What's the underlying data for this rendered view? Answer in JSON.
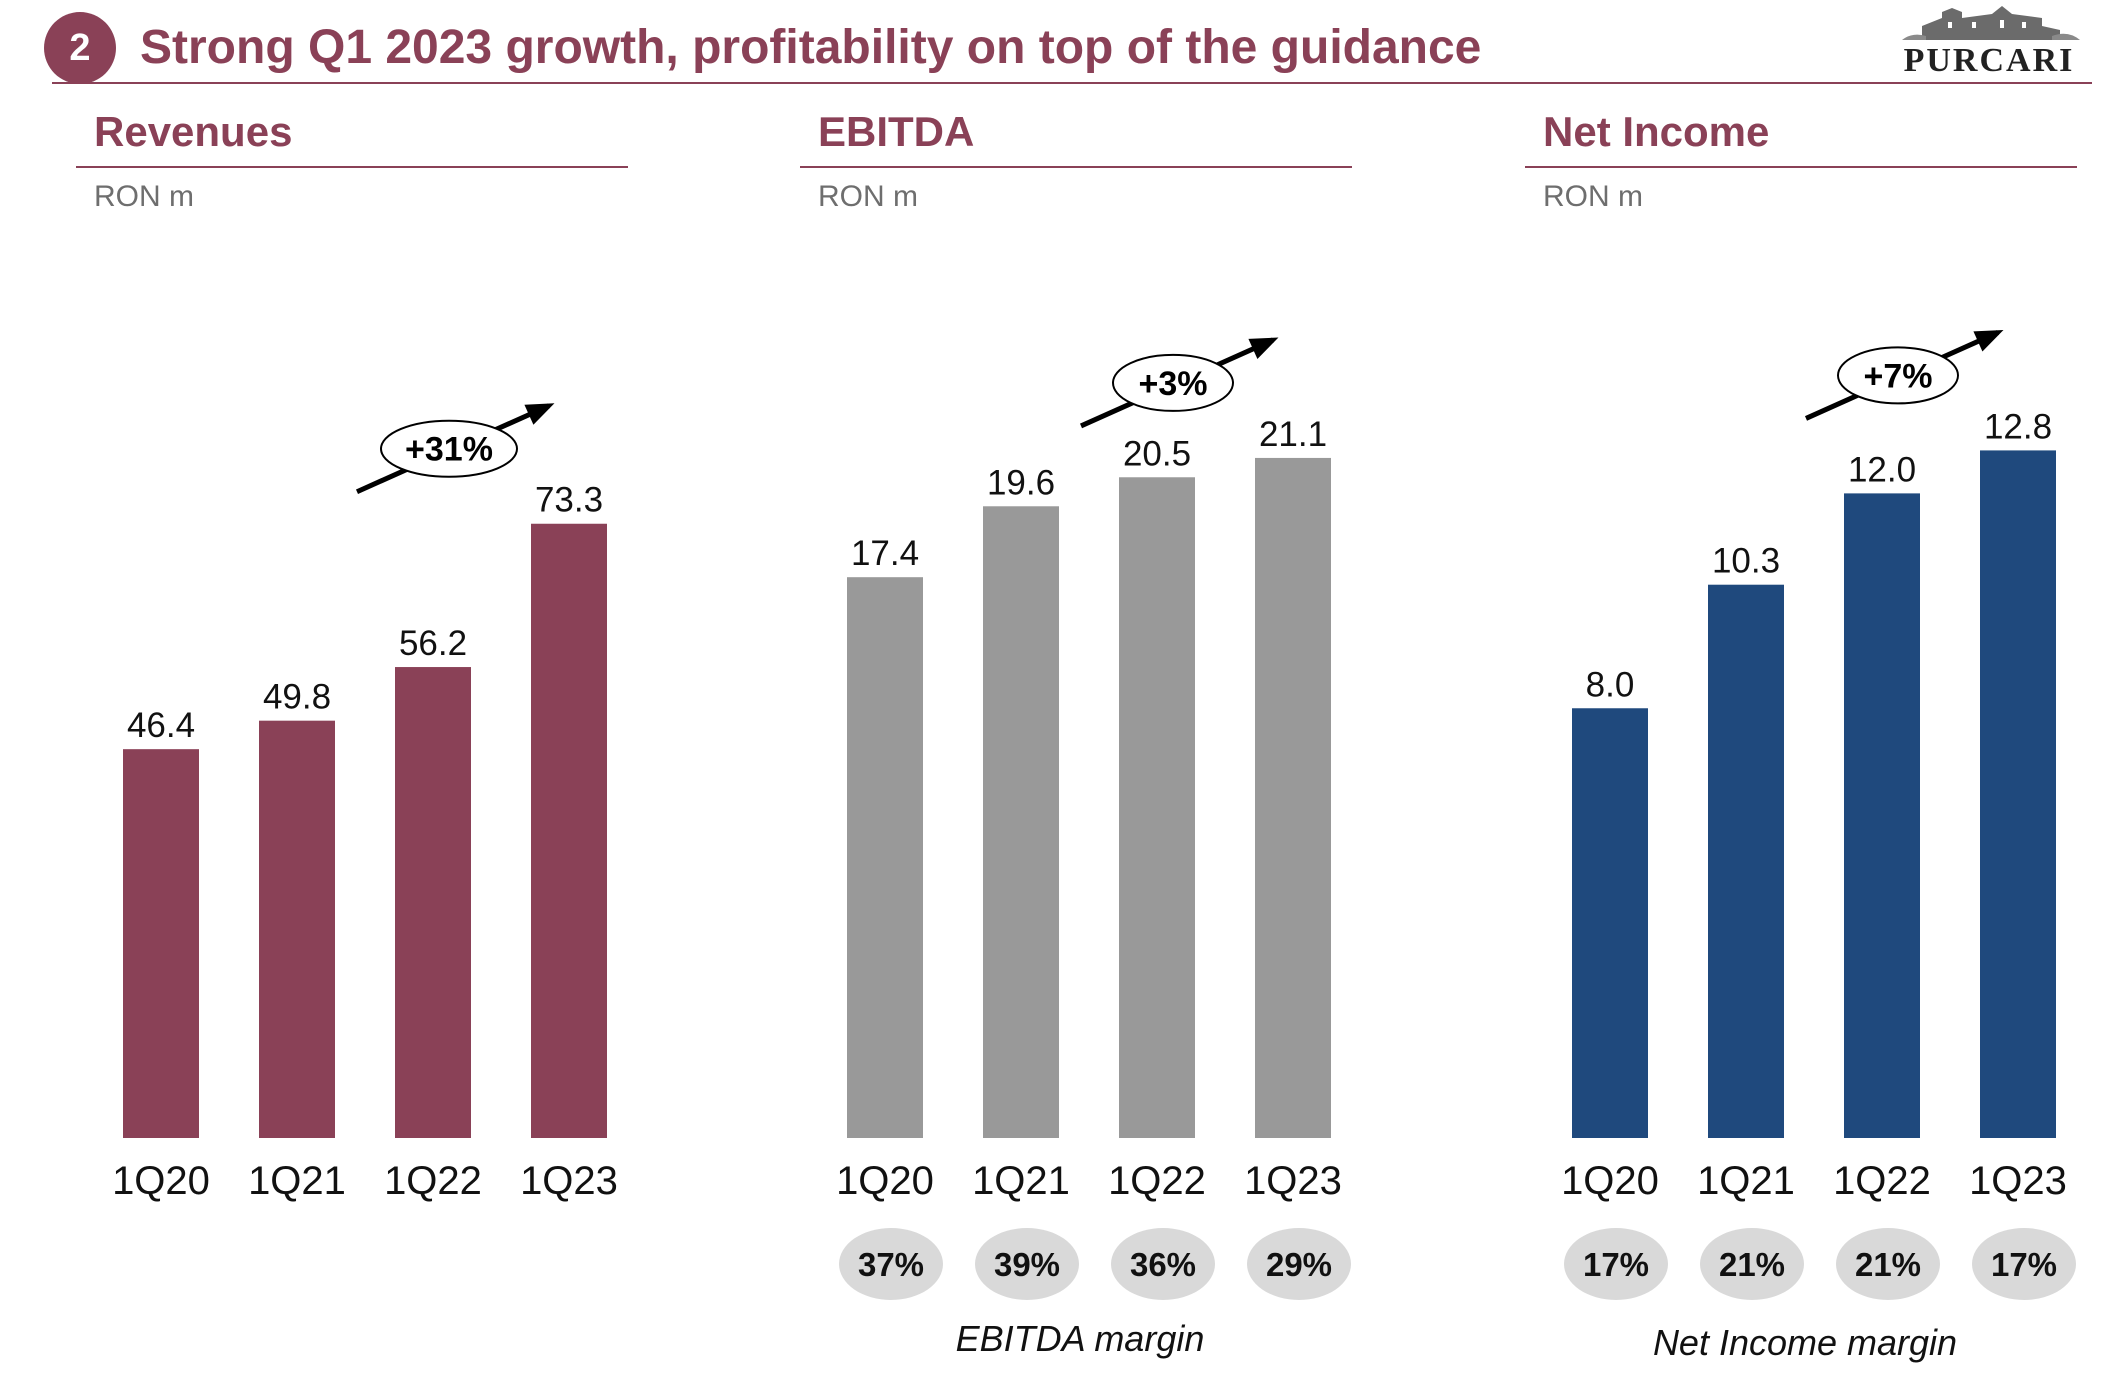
{
  "slide": {
    "number": "2",
    "title": "Strong Q1 2023 growth, profitability on top of the guidance",
    "logo_text": "PURCARI"
  },
  "colors": {
    "brand": "#8a4157",
    "revenue_bar": "#8a4157",
    "ebitda_bar": "#999999",
    "netincome_bar": "#1f497d",
    "margin_pill": "#d9d9d9"
  },
  "panels": [
    {
      "title": "Revenues",
      "unit": "RON m",
      "growth": "+31%",
      "margin_label": "",
      "margins": []
    },
    {
      "title": "EBITDA",
      "unit": "RON m",
      "growth": "+3%",
      "margin_label": "EBITDA margin",
      "margins": [
        "37%",
        "39%",
        "36%",
        "29%"
      ]
    },
    {
      "title": "Net Income",
      "unit": "RON m",
      "growth": "+7%",
      "margin_label": "Net Income margin",
      "margins": [
        "17%",
        "21%",
        "21%",
        "17%"
      ]
    }
  ],
  "chart_data": [
    {
      "type": "bar",
      "title": "Revenues",
      "ylabel": "RON m",
      "categories": [
        "1Q20",
        "1Q21",
        "1Q22",
        "1Q23"
      ],
      "values": [
        46.4,
        49.8,
        56.2,
        73.3
      ],
      "value_labels": [
        "46.4",
        "49.8",
        "56.2",
        "73.3"
      ],
      "growth_annotation": "+31%",
      "ylim": [
        0,
        100
      ],
      "color": "#8a4157"
    },
    {
      "type": "bar",
      "title": "EBITDA",
      "ylabel": "RON m",
      "categories": [
        "1Q20",
        "1Q21",
        "1Q22",
        "1Q23"
      ],
      "values": [
        17.4,
        19.6,
        20.5,
        21.1
      ],
      "value_labels": [
        "17.4",
        "19.6",
        "20.5",
        "21.1"
      ],
      "growth_annotation": "+3%",
      "ylim": [
        0,
        26
      ],
      "color": "#999999",
      "margins": [
        "37%",
        "39%",
        "36%",
        "29%"
      ]
    },
    {
      "type": "bar",
      "title": "Net Income",
      "ylabel": "RON m",
      "categories": [
        "1Q20",
        "1Q21",
        "1Q22",
        "1Q23"
      ],
      "values": [
        8.0,
        10.3,
        12.0,
        12.8
      ],
      "value_labels": [
        "8.0",
        "10.3",
        "12.0",
        "12.8"
      ],
      "growth_annotation": "+7%",
      "ylim": [
        0,
        15.6
      ],
      "color": "#1f497d",
      "margins": [
        "17%",
        "21%",
        "21%",
        "17%"
      ]
    }
  ]
}
